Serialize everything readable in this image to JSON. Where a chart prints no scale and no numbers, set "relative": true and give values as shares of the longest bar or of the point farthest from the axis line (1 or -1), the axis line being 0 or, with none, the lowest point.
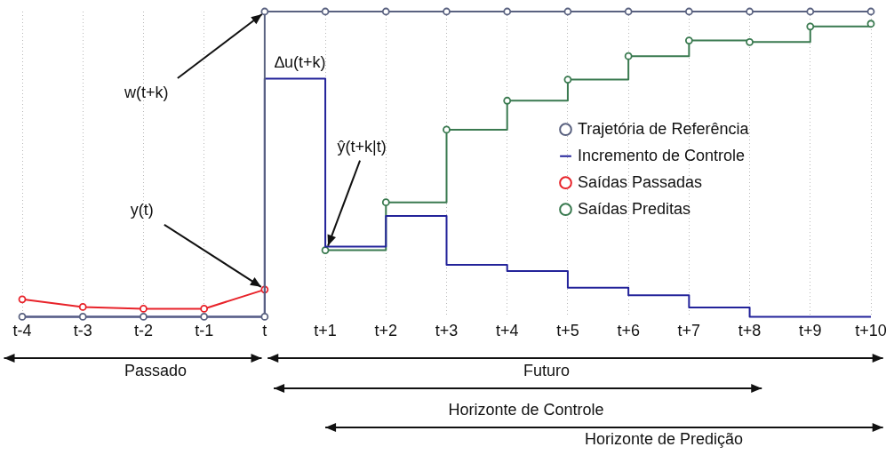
{
  "chart_data": {
    "type": "line",
    "relative": true,
    "categories": [
      "t-4",
      "t-3",
      "t-2",
      "t-1",
      "t",
      "t+1",
      "t+2",
      "t+3",
      "t+4",
      "t+5",
      "t+6",
      "t+7",
      "t+8",
      "t+9",
      "t+10"
    ],
    "series": [
      {
        "name": "Trajetória de Referência",
        "color": "#5a6280",
        "x": [
          "t-4",
          "t-3",
          "t-2",
          "t-1",
          "t",
          "t",
          "t+1",
          "t+2",
          "t+3",
          "t+4",
          "t+5",
          "t+6",
          "t+7",
          "t+8",
          "t+9",
          "t+10"
        ],
        "values": [
          0,
          0,
          0,
          0,
          0,
          1,
          1,
          1,
          1,
          1,
          1,
          1,
          1,
          1,
          1,
          1
        ]
      },
      {
        "name": "Incremento de Controle",
        "type": "step",
        "color": "#23239a",
        "marker": "none",
        "x": [
          "t-4",
          "t",
          "t+1",
          "t+2",
          "t+3",
          "t+4",
          "t+5",
          "t+6",
          "t+7",
          "t+8",
          "t+9",
          "t+10"
        ],
        "values": [
          0,
          0.78,
          0.23,
          0.33,
          0.17,
          0.15,
          0.095,
          0.07,
          0.03,
          0,
          0,
          0
        ]
      },
      {
        "name": "Saídas Passadas",
        "color": "#e8232a",
        "x": [
          "t-4",
          "t-3",
          "t-2",
          "t-1",
          "t"
        ],
        "values": [
          0.057,
          0.032,
          0.026,
          0.026,
          0.089
        ]
      },
      {
        "name": "Saídas Preditas",
        "type": "step",
        "color": "#3a7a50",
        "x": [
          "t+1",
          "t+2",
          "t+3",
          "t+4",
          "t+5",
          "t+6",
          "t+7",
          "t+8",
          "t+9",
          "t+10"
        ],
        "values": [
          0.218,
          0.375,
          0.613,
          0.708,
          0.777,
          0.854,
          0.905,
          0.9,
          0.951,
          0.96
        ]
      }
    ],
    "marker": "circle",
    "grid": "x",
    "legend": "right",
    "annotations": [
      {
        "text": "w(t+k)",
        "x": "t",
        "y": 1
      },
      {
        "text": "∆u(t+k)",
        "x": "t",
        "y": 0.78
      },
      {
        "text": "ŷ(t+k|t)",
        "x": "t+1",
        "y": 0.218
      },
      {
        "text": "y(t)",
        "x": "t",
        "y": 0.089
      },
      "Passado",
      "Futuro",
      "Horizonte de Controle",
      "Horizonte de Predição"
    ]
  }
}
